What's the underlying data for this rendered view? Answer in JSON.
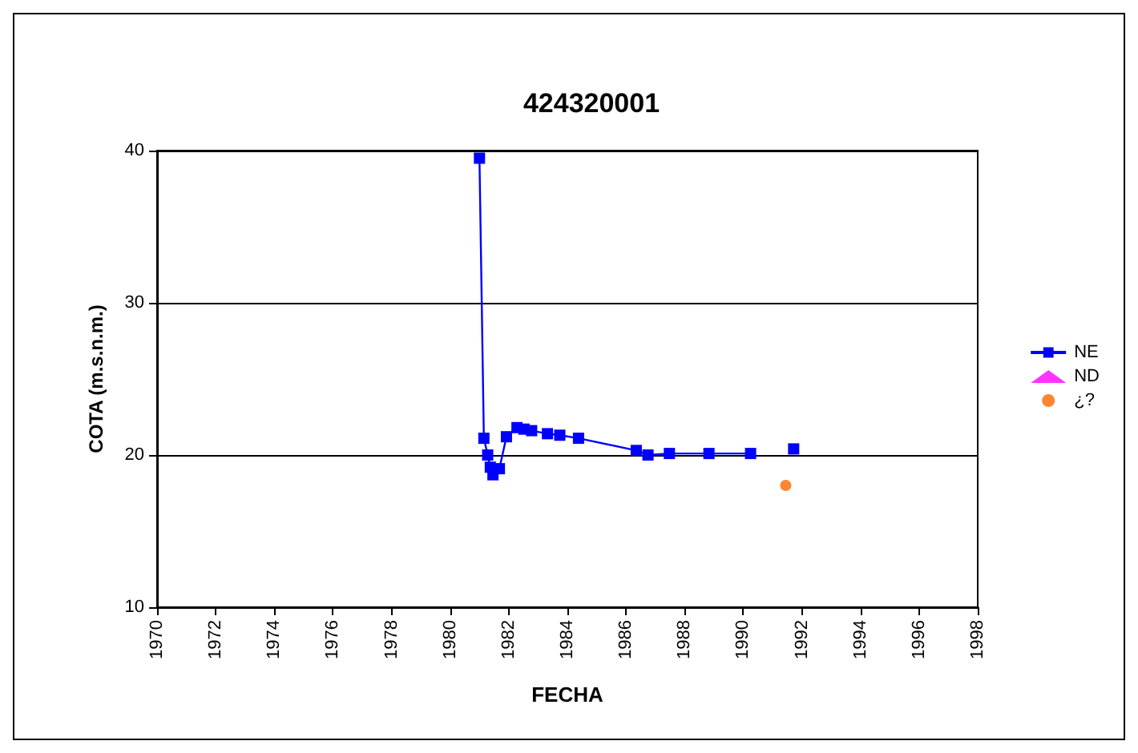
{
  "chart_data": {
    "type": "line",
    "title": "424320001",
    "xlabel": "FECHA",
    "ylabel": "COTA (m.s.n.m.)",
    "xlim": [
      1970,
      1998
    ],
    "xticks": [
      1970,
      1972,
      1974,
      1976,
      1978,
      1980,
      1982,
      1984,
      1986,
      1988,
      1990,
      1992,
      1994,
      1996,
      1998
    ],
    "ylim": [
      10,
      40
    ],
    "yticks": [
      10,
      20,
      30,
      40
    ],
    "grid": "y",
    "legend": "right",
    "series": [
      {
        "name": "NE",
        "color": "#0000ff",
        "marker": "square",
        "line_style": "solid",
        "x": [
          1981.0,
          1981.15,
          1981.28,
          1981.37,
          1981.46,
          1981.68,
          1981.92,
          1982.28,
          1982.52,
          1982.78,
          1983.32,
          1983.74,
          1984.38,
          1986.35,
          1986.75,
          1987.48,
          1988.83,
          1990.25,
          1991.0,
          1991.72
        ],
        "values": [
          39.5,
          21.1,
          20.0,
          19.2,
          18.7,
          19.1,
          21.2,
          21.8,
          21.7,
          21.6,
          21.4,
          21.3,
          21.1,
          20.3,
          20.0,
          20.1,
          20.1,
          20.1,
          null,
          20.4
        ]
      },
      {
        "name": "ND",
        "color": "#ff00ff",
        "type": "scatter",
        "marker": "triangle"
      },
      {
        "name": "¿?",
        "color": "#ff6600",
        "type": "scatter",
        "marker": "circle",
        "x": [
          1991.45
        ],
        "values": [
          18.0
        ]
      }
    ]
  }
}
